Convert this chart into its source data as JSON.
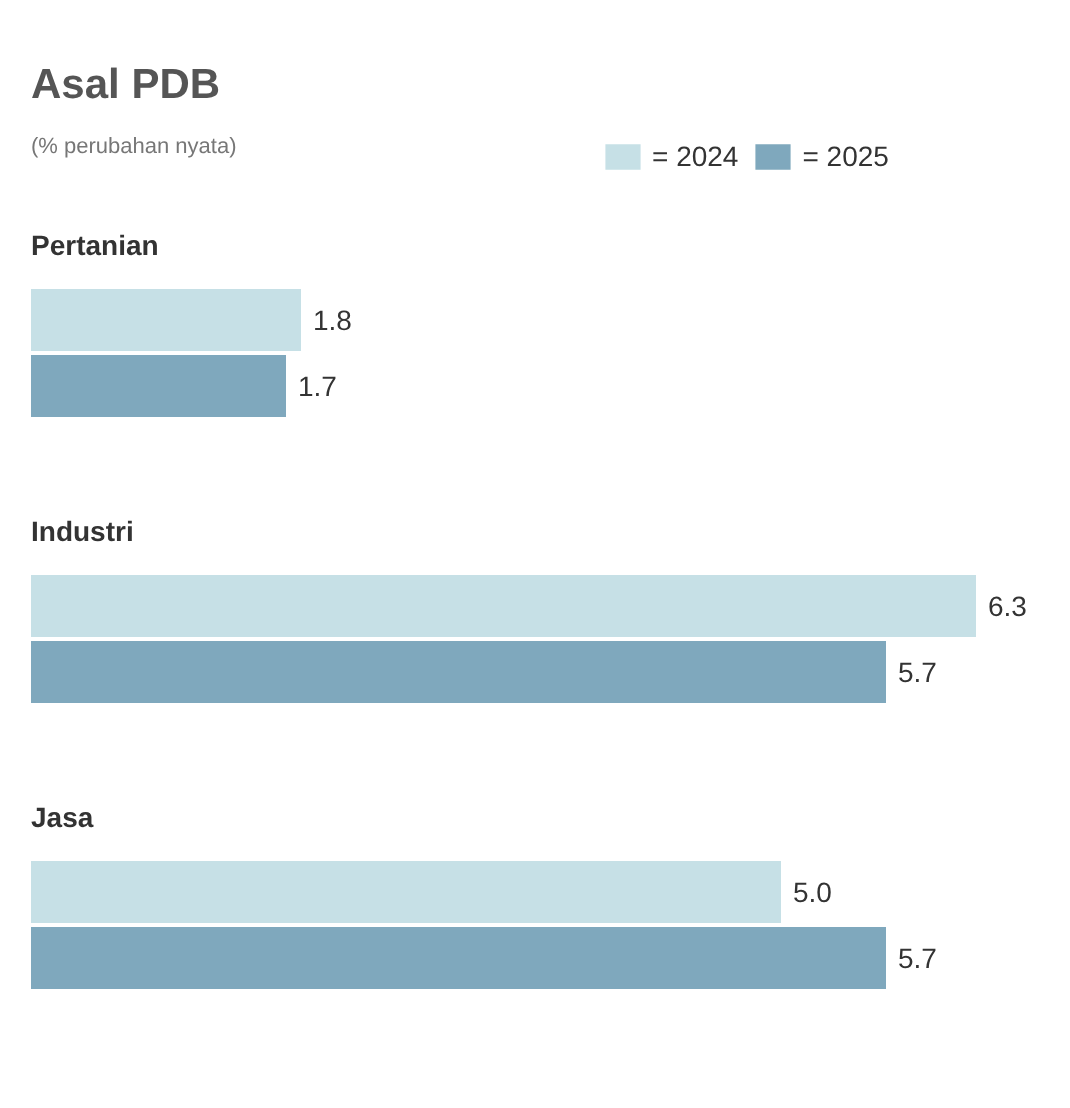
{
  "chart_data": {
    "type": "bar",
    "orientation": "horizontal",
    "title": "Asal PDB",
    "subtitle": "(% perubahan nyata)",
    "categories": [
      "Pertanian",
      "Industri",
      "Jasa"
    ],
    "series": [
      {
        "name": "= 2024",
        "color": "#c6e0e6",
        "values": [
          1.8,
          6.3,
          5.0
        ],
        "value_labels": [
          "1.8",
          "6.3",
          "5.0"
        ]
      },
      {
        "name": "= 2025",
        "color": "#7fa8bd",
        "values": [
          1.7,
          5.7,
          5.7
        ],
        "value_labels": [
          "1.7",
          "5.7",
          "5.7"
        ]
      }
    ],
    "legend": "top right",
    "grid": false
  }
}
